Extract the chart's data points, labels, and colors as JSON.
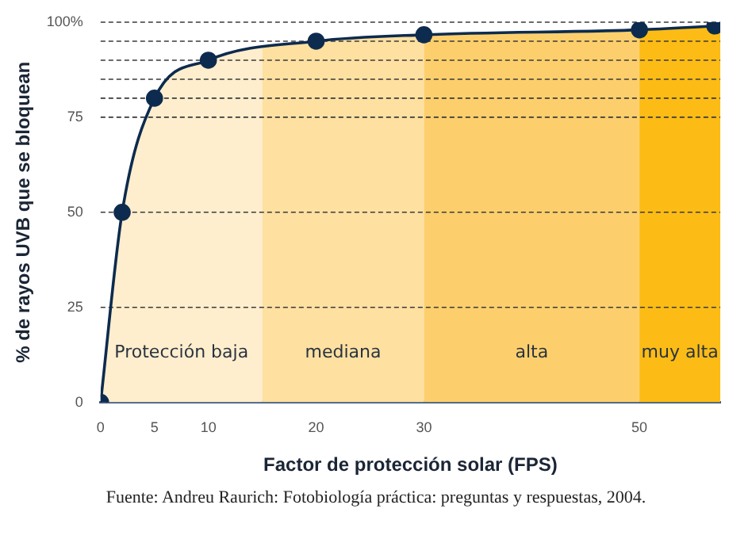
{
  "chart_data": {
    "type": "line",
    "xlabel": "Factor de protección solar (FPS)",
    "ylabel": "% de rayos UVB que se bloquean",
    "x": [
      0,
      2,
      5,
      10,
      20,
      30,
      50,
      57
    ],
    "series": [
      {
        "color": "#0d2b4e",
        "values": [
          0,
          50,
          80,
          90,
          95,
          96.7,
          98,
          99
        ]
      }
    ],
    "xlim": [
      0,
      57.5
    ],
    "xticks": [
      0,
      5,
      10,
      20,
      30,
      50
    ],
    "ylim": [
      0,
      100
    ],
    "yticks": [
      0,
      25,
      50,
      75,
      {
        "value": 80,
        "label": null
      },
      {
        "value": 85,
        "label": null
      },
      {
        "value": 90,
        "label": null
      },
      {
        "value": 95,
        "label": null
      },
      {
        "value": 100,
        "label": "100%"
      }
    ],
    "grid": "y",
    "marker": "circle",
    "line_style": "solid",
    "legend": false,
    "bands": [
      {
        "axis": "x",
        "from": 0,
        "to": 15,
        "label": "Protección baja",
        "color": "#feeecd"
      },
      {
        "axis": "x",
        "from": 15,
        "to": 30,
        "label": "mediana",
        "color": "#fee0a1"
      },
      {
        "axis": "x",
        "from": 30,
        "to": 50,
        "label": "alta",
        "color": "#fdcf6c"
      },
      {
        "axis": "x",
        "from": 50,
        "to": 57.5,
        "label": "muy alta",
        "color": "#fcbc15"
      }
    ],
    "annotations": [
      "Fuente: Andreu Raurich: Fotobiología práctica: preguntas y respuestas, 2004."
    ]
  }
}
